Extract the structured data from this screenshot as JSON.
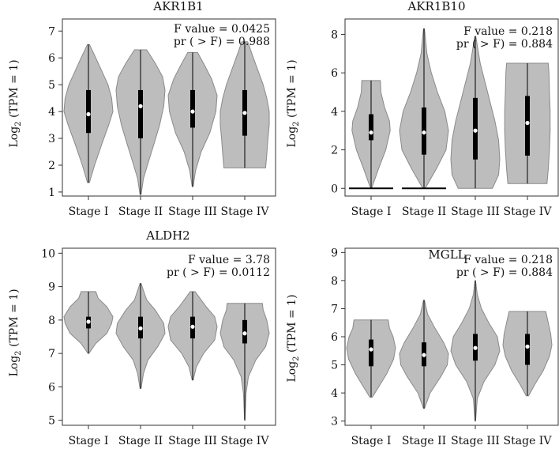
{
  "figure": {
    "x_categories": [
      "Stage I",
      "Stage II",
      "Stage III",
      "Stage IV"
    ]
  },
  "colors": {
    "violin_fill": "#bdbdbd",
    "violin_stroke": "#8a8a8a",
    "box": "#000000",
    "median": "#ffffff",
    "axis": "#333333"
  },
  "chart_data": [
    {
      "type": "violin",
      "title": "AKR1B1",
      "ylabel_main": "Log",
      "ylabel_sub": "2",
      "ylabel_rest": " (TPM = 1)",
      "stat_f": "F value = 0.0425",
      "stat_p": "pr ( > F) = 0.988",
      "yticks": [
        "1",
        "2",
        "3",
        "4",
        "5",
        "6",
        "7"
      ],
      "ylim": [
        0.85,
        7.45
      ],
      "categories": [
        "Stage I",
        "Stage II",
        "Stage III",
        "Stage IV"
      ],
      "violins": [
        {
          "min": 1.35,
          "max": 6.5,
          "q1": 3.2,
          "q3": 4.8,
          "median": 3.9,
          "zero_bar": false,
          "profile": [
            [
              1.35,
              0.04
            ],
            [
              2.0,
              0.25
            ],
            [
              2.8,
              0.55
            ],
            [
              3.5,
              0.83
            ],
            [
              4.0,
              1.0
            ],
            [
              4.5,
              0.95
            ],
            [
              5.0,
              0.8
            ],
            [
              5.5,
              0.55
            ],
            [
              6.0,
              0.3
            ],
            [
              6.5,
              0.04
            ]
          ]
        },
        {
          "min": 0.9,
          "max": 6.3,
          "q1": 3.0,
          "q3": 4.8,
          "median": 4.2,
          "zero_bar": false,
          "profile": [
            [
              0.9,
              0.02
            ],
            [
              1.5,
              0.12
            ],
            [
              2.0,
              0.28
            ],
            [
              2.8,
              0.55
            ],
            [
              3.5,
              0.78
            ],
            [
              4.2,
              0.95
            ],
            [
              4.8,
              1.0
            ],
            [
              5.3,
              0.9
            ],
            [
              5.8,
              0.6
            ],
            [
              6.3,
              0.25
            ]
          ]
        },
        {
          "min": 1.2,
          "max": 6.2,
          "q1": 3.4,
          "q3": 4.8,
          "median": 4.0,
          "zero_bar": false,
          "profile": [
            [
              1.2,
              0.02
            ],
            [
              1.8,
              0.12
            ],
            [
              2.5,
              0.35
            ],
            [
              3.2,
              0.7
            ],
            [
              4.0,
              0.95
            ],
            [
              4.6,
              1.0
            ],
            [
              5.2,
              0.78
            ],
            [
              5.7,
              0.5
            ],
            [
              6.2,
              0.2
            ]
          ]
        },
        {
          "min": 1.9,
          "max": 6.6,
          "q1": 3.1,
          "q3": 4.8,
          "median": 3.95,
          "zero_bar": false,
          "profile": [
            [
              1.9,
              0.85
            ],
            [
              2.4,
              0.9
            ],
            [
              3.0,
              0.95
            ],
            [
              3.5,
              1.0
            ],
            [
              4.0,
              1.0
            ],
            [
              4.5,
              0.9
            ],
            [
              5.0,
              0.75
            ],
            [
              5.5,
              0.55
            ],
            [
              6.0,
              0.35
            ],
            [
              6.6,
              0.12
            ]
          ]
        }
      ]
    },
    {
      "type": "violin",
      "title": "AKR1B10",
      "ylabel_main": "Log",
      "ylabel_sub": "2",
      "ylabel_rest": " (TPM = 1)",
      "stat_f": "F value = 0.218",
      "stat_p": "pr ( > F) = 0.884",
      "yticks": [
        "0",
        "2",
        "4",
        "6",
        "8"
      ],
      "ylim": [
        -0.4,
        8.8
      ],
      "categories": [
        "Stage I",
        "Stage II",
        "Stage III",
        "Stage IV"
      ],
      "violins": [
        {
          "min": 0.0,
          "max": 5.6,
          "q1": 2.5,
          "q3": 3.85,
          "median": 2.9,
          "zero_bar": true,
          "profile": [
            [
              0.0,
              0.02
            ],
            [
              1.0,
              0.3
            ],
            [
              2.0,
              0.6
            ],
            [
              3.0,
              0.78
            ],
            [
              3.5,
              0.75
            ],
            [
              4.2,
              0.55
            ],
            [
              5.0,
              0.4
            ],
            [
              5.6,
              0.38
            ]
          ]
        },
        {
          "min": 0.0,
          "max": 8.3,
          "q1": 1.75,
          "q3": 4.2,
          "median": 2.9,
          "zero_bar": true,
          "profile": [
            [
              0.0,
              0.05
            ],
            [
              1.0,
              0.5
            ],
            [
              2.0,
              0.9
            ],
            [
              3.0,
              1.0
            ],
            [
              4.0,
              0.85
            ],
            [
              5.0,
              0.55
            ],
            [
              6.0,
              0.3
            ],
            [
              7.0,
              0.12
            ],
            [
              8.3,
              0.02
            ]
          ]
        },
        {
          "min": 0.0,
          "max": 7.9,
          "q1": 1.5,
          "q3": 4.7,
          "median": 3.0,
          "zero_bar": false,
          "profile": [
            [
              0.0,
              0.7
            ],
            [
              0.7,
              0.95
            ],
            [
              1.5,
              1.0
            ],
            [
              2.5,
              0.95
            ],
            [
              3.5,
              0.8
            ],
            [
              4.5,
              0.6
            ],
            [
              5.5,
              0.4
            ],
            [
              6.5,
              0.2
            ],
            [
              7.9,
              0.02
            ]
          ]
        },
        {
          "min": 0.25,
          "max": 6.5,
          "q1": 1.7,
          "q3": 4.8,
          "median": 3.4,
          "zero_bar": false,
          "profile": [
            [
              0.25,
              0.8
            ],
            [
              1.0,
              0.85
            ],
            [
              2.0,
              0.9
            ],
            [
              3.0,
              0.93
            ],
            [
              4.0,
              0.93
            ],
            [
              5.0,
              0.9
            ],
            [
              6.0,
              0.88
            ],
            [
              6.5,
              0.85
            ]
          ]
        }
      ]
    },
    {
      "type": "violin",
      "title": "ALDH2",
      "ylabel_main": "Log",
      "ylabel_sub": "2",
      "ylabel_rest": " (TPM = 1)",
      "stat_f": "F value = 3.78",
      "stat_p": "pr ( > F) = 0.0112",
      "yticks": [
        "5",
        "6",
        "7",
        "8",
        "9",
        "10"
      ],
      "ylim": [
        4.85,
        10.15
      ],
      "categories": [
        "Stage I",
        "Stage II",
        "Stage III",
        "Stage IV"
      ],
      "violins": [
        {
          "min": 7.0,
          "max": 8.85,
          "q1": 7.75,
          "q3": 8.1,
          "median": 7.95,
          "zero_bar": false,
          "profile": [
            [
              7.0,
              0.02
            ],
            [
              7.3,
              0.3
            ],
            [
              7.6,
              0.75
            ],
            [
              7.9,
              0.95
            ],
            [
              8.1,
              1.0
            ],
            [
              8.4,
              0.75
            ],
            [
              8.65,
              0.4
            ],
            [
              8.85,
              0.3
            ]
          ]
        },
        {
          "min": 5.95,
          "max": 9.1,
          "q1": 7.45,
          "q3": 8.1,
          "median": 7.75,
          "zero_bar": false,
          "profile": [
            [
              5.95,
              0.02
            ],
            [
              6.4,
              0.12
            ],
            [
              6.8,
              0.3
            ],
            [
              7.2,
              0.7
            ],
            [
              7.6,
              1.0
            ],
            [
              7.9,
              0.95
            ],
            [
              8.3,
              0.6
            ],
            [
              8.6,
              0.25
            ],
            [
              9.1,
              0.02
            ]
          ]
        },
        {
          "min": 6.2,
          "max": 8.85,
          "q1": 7.45,
          "q3": 8.1,
          "median": 7.8,
          "zero_bar": false,
          "profile": [
            [
              6.2,
              0.02
            ],
            [
              6.6,
              0.15
            ],
            [
              7.0,
              0.45
            ],
            [
              7.4,
              0.9
            ],
            [
              7.8,
              1.0
            ],
            [
              8.1,
              0.9
            ],
            [
              8.4,
              0.55
            ],
            [
              8.7,
              0.25
            ],
            [
              8.85,
              0.1
            ]
          ]
        },
        {
          "min": 5.0,
          "max": 8.5,
          "q1": 7.3,
          "q3": 8.0,
          "median": 7.6,
          "zero_bar": false,
          "profile": [
            [
              5.0,
              0.01
            ],
            [
              5.8,
              0.05
            ],
            [
              6.3,
              0.15
            ],
            [
              6.8,
              0.45
            ],
            [
              7.2,
              0.85
            ],
            [
              7.6,
              1.0
            ],
            [
              8.0,
              0.9
            ],
            [
              8.3,
              0.75
            ],
            [
              8.5,
              0.72
            ]
          ]
        }
      ]
    },
    {
      "type": "violin",
      "title": "MGLL",
      "ylabel_main": "Log",
      "ylabel_sub": "2",
      "ylabel_rest": " (TPM = 1)",
      "stat_f": "F value = 0.218",
      "stat_p": "pr ( > F) = 0.884",
      "yticks": [
        "3",
        "4",
        "5",
        "6",
        "7",
        "8",
        "9"
      ],
      "ylim": [
        2.85,
        9.15
      ],
      "categories": [
        "Stage I",
        "Stage II",
        "Stage III",
        "Stage IV"
      ],
      "violins": [
        {
          "min": 3.85,
          "max": 6.6,
          "q1": 4.95,
          "q3": 5.9,
          "median": 5.55,
          "zero_bar": false,
          "profile": [
            [
              3.85,
              0.05
            ],
            [
              4.2,
              0.3
            ],
            [
              4.7,
              0.65
            ],
            [
              5.2,
              0.92
            ],
            [
              5.6,
              1.0
            ],
            [
              6.0,
              0.9
            ],
            [
              6.3,
              0.75
            ],
            [
              6.6,
              0.7
            ]
          ]
        },
        {
          "min": 3.45,
          "max": 7.3,
          "q1": 4.95,
          "q3": 5.8,
          "median": 5.35,
          "zero_bar": false,
          "profile": [
            [
              3.45,
              0.02
            ],
            [
              4.0,
              0.25
            ],
            [
              4.6,
              0.7
            ],
            [
              5.0,
              0.95
            ],
            [
              5.4,
              1.0
            ],
            [
              5.8,
              0.8
            ],
            [
              6.3,
              0.45
            ],
            [
              6.8,
              0.15
            ],
            [
              7.3,
              0.02
            ]
          ]
        },
        {
          "min": 3.0,
          "max": 8.0,
          "q1": 5.15,
          "q3": 6.1,
          "median": 5.6,
          "zero_bar": false,
          "profile": [
            [
              3.0,
              0.01
            ],
            [
              3.8,
              0.08
            ],
            [
              4.4,
              0.35
            ],
            [
              5.0,
              0.8
            ],
            [
              5.5,
              1.0
            ],
            [
              6.0,
              0.9
            ],
            [
              6.5,
              0.55
            ],
            [
              7.0,
              0.25
            ],
            [
              7.5,
              0.08
            ],
            [
              8.0,
              0.01
            ]
          ]
        },
        {
          "min": 3.9,
          "max": 6.9,
          "q1": 5.0,
          "q3": 6.1,
          "median": 5.65,
          "zero_bar": false,
          "profile": [
            [
              3.9,
              0.05
            ],
            [
              4.3,
              0.3
            ],
            [
              4.8,
              0.65
            ],
            [
              5.3,
              0.9
            ],
            [
              5.7,
              1.0
            ],
            [
              6.1,
              0.95
            ],
            [
              6.5,
              0.85
            ],
            [
              6.9,
              0.75
            ]
          ]
        }
      ]
    }
  ]
}
